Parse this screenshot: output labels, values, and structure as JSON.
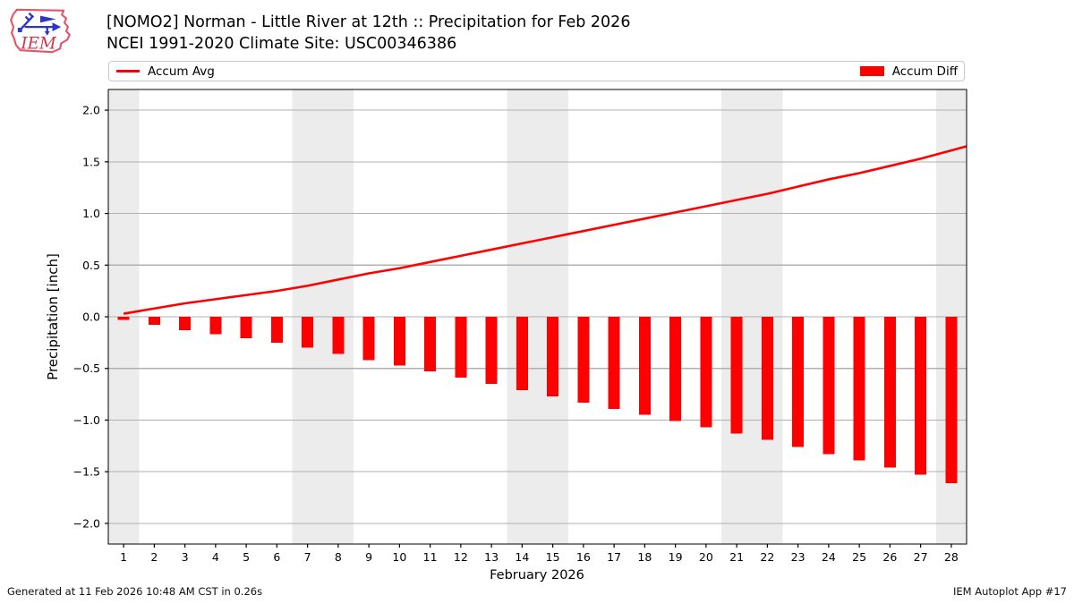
{
  "header": {
    "title_line1": "[NOMO2] Norman - Little River at 12th :: Precipitation for Feb 2026",
    "title_line2": "NCEI 1991-2020 Climate Site: USC00346386",
    "logo_text": "IEM"
  },
  "legend": {
    "avg_label": "Accum Avg",
    "diff_label": "Accum Diff"
  },
  "footer": {
    "left": "Generated at 11 Feb 2026 10:48 AM CST in 0.26s",
    "right": "IEM Autoplot App #17"
  },
  "colors": {
    "series_red": "#ff0000",
    "weekend_band": "#ececec",
    "gridline": "#b0b0b0",
    "spine": "#000000",
    "legend_border": "#c9c9c9",
    "logo_outline": "#e4556a",
    "logo_blue": "#2b35c7",
    "logo_red": "#c9394a"
  },
  "chart_data": {
    "type": "bar",
    "title": "[NOMO2] Norman - Little River at 12th :: Precipitation for Feb 2026",
    "subtitle": "NCEI 1991-2020 Climate Site: USC00346386",
    "xlabel": "February 2026",
    "ylabel": "Precipitation [inch]",
    "x": [
      1,
      2,
      3,
      4,
      5,
      6,
      7,
      8,
      9,
      10,
      11,
      12,
      13,
      14,
      15,
      16,
      17,
      18,
      19,
      20,
      21,
      22,
      23,
      24,
      25,
      26,
      27,
      28
    ],
    "series": [
      {
        "name": "Accum Avg",
        "kind": "line",
        "values": [
          0.03,
          0.08,
          0.13,
          0.17,
          0.21,
          0.25,
          0.3,
          0.36,
          0.42,
          0.47,
          0.53,
          0.59,
          0.65,
          0.71,
          0.77,
          0.83,
          0.89,
          0.95,
          1.01,
          1.07,
          1.13,
          1.19,
          1.26,
          1.33,
          1.39,
          1.46,
          1.53,
          1.61
        ]
      },
      {
        "name": "Accum Diff",
        "kind": "bar",
        "values": [
          -0.03,
          -0.08,
          -0.13,
          -0.17,
          -0.21,
          -0.25,
          -0.3,
          -0.36,
          -0.42,
          -0.47,
          -0.53,
          -0.59,
          -0.65,
          -0.71,
          -0.77,
          -0.83,
          -0.89,
          -0.95,
          -1.01,
          -1.07,
          -1.13,
          -1.19,
          -1.26,
          -1.33,
          -1.39,
          -1.46,
          -1.53,
          -1.61
        ]
      }
    ],
    "xlim": [
      0.5,
      28.5
    ],
    "ylim": [
      -2.2,
      2.2
    ],
    "yticks": [
      -2.0,
      -1.5,
      -1.0,
      -0.5,
      0.0,
      0.5,
      1.0,
      1.5,
      2.0
    ],
    "grid": "horizontal",
    "legend_position": "top",
    "weekend_bands": [
      [
        0.5,
        1.5
      ],
      [
        6.5,
        8.5
      ],
      [
        13.5,
        15.5
      ],
      [
        20.5,
        22.5
      ],
      [
        27.5,
        28.5
      ]
    ]
  }
}
